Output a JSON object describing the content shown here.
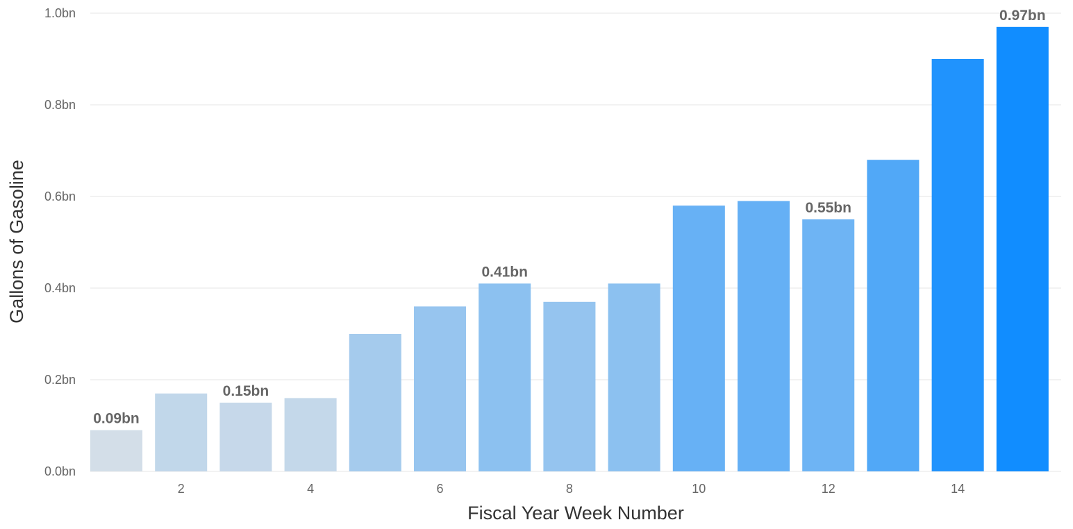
{
  "chart_data": {
    "type": "bar",
    "xlabel": "Fiscal Year Week Number",
    "ylabel": "Gallons of Gasoline",
    "ylim": [
      0,
      1.0
    ],
    "y_ticks": [
      "0.0bn",
      "0.2bn",
      "0.4bn",
      "0.6bn",
      "0.8bn",
      "1.0bn"
    ],
    "y_tick_values": [
      0,
      0.2,
      0.4,
      0.6,
      0.8,
      1.0
    ],
    "x_ticks": [
      2,
      4,
      6,
      8,
      10,
      12,
      14
    ],
    "x": [
      1,
      2,
      3,
      4,
      5,
      6,
      7,
      8,
      9,
      10,
      11,
      12,
      13,
      14,
      15
    ],
    "values": [
      0.09,
      0.17,
      0.15,
      0.16,
      0.3,
      0.36,
      0.41,
      0.37,
      0.41,
      0.58,
      0.59,
      0.55,
      0.68,
      0.9,
      0.97
    ],
    "data_labels": [
      "0.09bn",
      "",
      "0.15bn",
      "",
      "",
      "",
      "0.41bn",
      "",
      "",
      "",
      "",
      "0.55bn",
      "",
      "",
      "0.97bn"
    ],
    "grid": true,
    "colors": {
      "low": "#d3dee8",
      "high": "#118dff",
      "grid": "#eeeeee",
      "tick_text": "#666666",
      "title_text": "#333333"
    }
  }
}
